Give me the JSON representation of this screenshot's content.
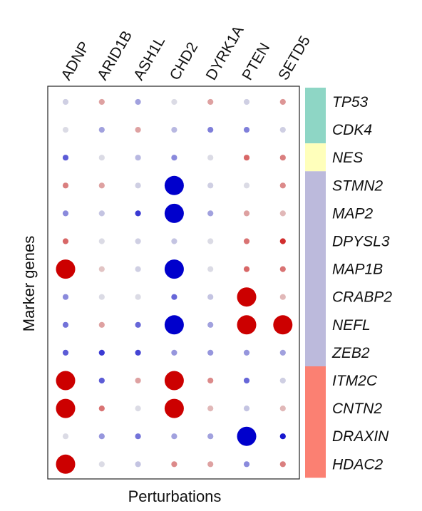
{
  "chart_data": {
    "type": "dotplot",
    "xlabel": "Perturbations",
    "ylabel": "Marker genes",
    "columns": [
      "ADNP",
      "ARID1B",
      "ASH1L",
      "CHD2",
      "DYRK1A",
      "PTEN",
      "SETD5"
    ],
    "rows": [
      "TP53",
      "CDK4",
      "NES",
      "STMN2",
      "MAP2",
      "DPYSL3",
      "MAP1B",
      "CRABP2",
      "NEFL",
      "ZEB2",
      "ITM2C",
      "CNTN2",
      "DRAXIN",
      "HDAC2"
    ],
    "color_scale": {
      "negative": "#0000cc",
      "neutral": "#e6e6e6",
      "positive": "#cc0000"
    },
    "values": [
      [
        -0.1,
        0.3,
        -0.3,
        -0.05,
        0.3,
        -0.1,
        0.35
      ],
      [
        -0.05,
        -0.3,
        0.3,
        -0.2,
        -0.45,
        -0.45,
        -0.1
      ],
      [
        -0.6,
        -0.05,
        -0.2,
        -0.4,
        -0.05,
        0.55,
        0.45
      ],
      [
        0.45,
        0.3,
        -0.1,
        -2.2,
        -0.1,
        -0.05,
        0.4
      ],
      [
        -0.4,
        -0.15,
        -0.75,
        -2.1,
        -0.3,
        0.3,
        0.2
      ],
      [
        0.55,
        -0.05,
        -0.1,
        -0.15,
        -0.05,
        0.5,
        0.8
      ],
      [
        2.3,
        0.15,
        -0.1,
        -2.2,
        -0.05,
        0.55,
        0.5
      ],
      [
        -0.4,
        -0.05,
        -0.05,
        -0.55,
        -0.15,
        2.1,
        0.2
      ],
      [
        -0.5,
        0.3,
        -0.55,
        -2.2,
        -0.3,
        2.2,
        2.3
      ],
      [
        -0.6,
        -0.75,
        -0.7,
        -0.35,
        -0.35,
        -0.35,
        -0.3
      ],
      [
        2.3,
        -0.6,
        0.3,
        2.2,
        0.4,
        -0.55,
        -0.1
      ],
      [
        2.3,
        0.5,
        -0.05,
        2.2,
        0.2,
        -0.15,
        0.2
      ],
      [
        -0.05,
        -0.35,
        -0.5,
        -0.3,
        -0.3,
        -2.2,
        -0.9
      ],
      [
        2.3,
        -0.05,
        -0.15,
        0.4,
        0.3,
        -0.4,
        0.45
      ]
    ],
    "row_groups": [
      {
        "rows": 2,
        "color": "#8ed6c5"
      },
      {
        "rows": 1,
        "color": "#ffffbb"
      },
      {
        "rows": 7,
        "color": "#bcbadc"
      },
      {
        "rows": 4,
        "color": "#fb8072"
      }
    ]
  }
}
